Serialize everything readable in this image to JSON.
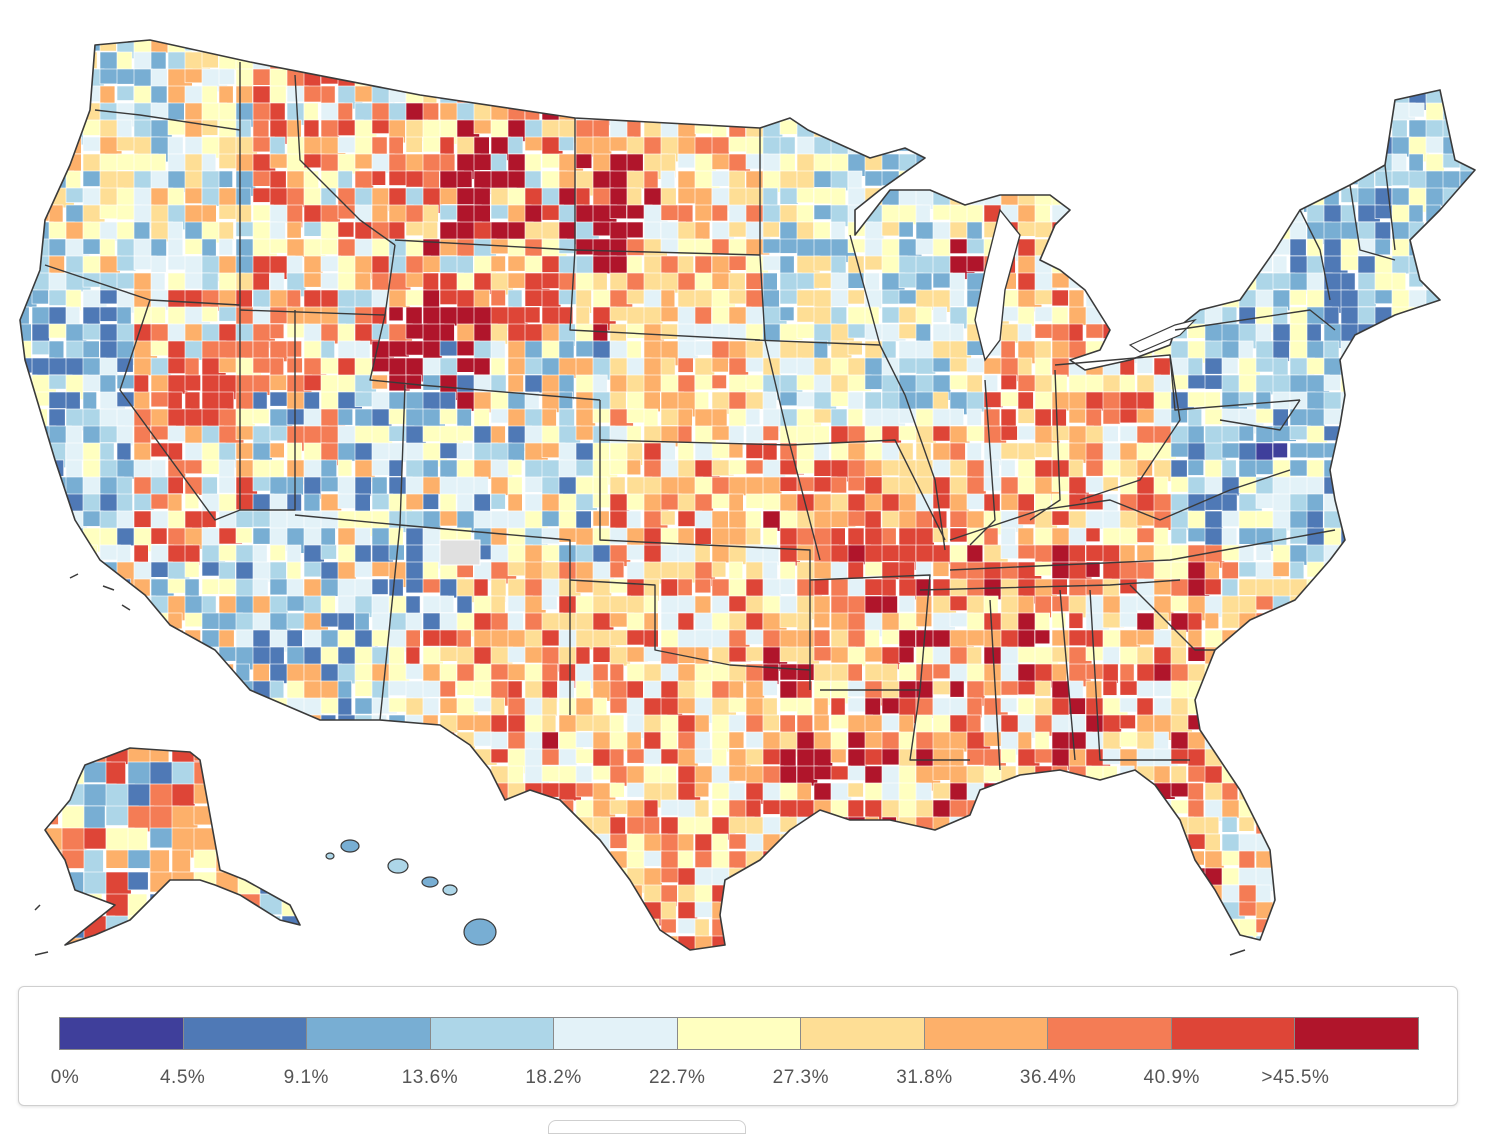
{
  "legend": {
    "colors": [
      "#3f3f9b",
      "#4f79b6",
      "#78aed3",
      "#add6e8",
      "#e3f2f8",
      "#ffffc0",
      "#fede95",
      "#fdb06a",
      "#f47c55",
      "#de4537",
      "#b0152b"
    ],
    "labels": [
      "0%",
      "4.5%",
      "9.1%",
      "13.6%",
      "18.2%",
      "22.7%",
      "27.3%",
      "31.8%",
      "36.4%",
      "40.9%",
      ">45.5%"
    ]
  },
  "map": {
    "nodata_color": "#e0e0e0",
    "regional_palette": [
      {
        "region": "pacific-northwest",
        "colors": [
          "#add6e8",
          "#e3f2f8",
          "#ffffc0",
          "#78aed3",
          "#fede95",
          "#fdb06a"
        ]
      },
      {
        "region": "california-coast",
        "colors": [
          "#78aed3",
          "#add6e8",
          "#4f79b6",
          "#e3f2f8",
          "#ffffc0"
        ]
      },
      {
        "region": "great-basin",
        "colors": [
          "#fdb06a",
          "#f47c55",
          "#ffffc0",
          "#e3f2f8",
          "#de4537",
          "#add6e8"
        ]
      },
      {
        "region": "southwest",
        "colors": [
          "#add6e8",
          "#78aed3",
          "#4f79b6",
          "#e3f2f8",
          "#fdb06a",
          "#ffffc0"
        ]
      },
      {
        "region": "northern-rockies",
        "colors": [
          "#fdb06a",
          "#f47c55",
          "#de4537",
          "#b0152b",
          "#ffffc0",
          "#fede95",
          "#add6e8"
        ]
      },
      {
        "region": "northern-plains",
        "colors": [
          "#fede95",
          "#ffffc0",
          "#fdb06a",
          "#e3f2f8",
          "#f47c55"
        ]
      },
      {
        "region": "southern-plains",
        "colors": [
          "#fede95",
          "#fdb06a",
          "#f47c55",
          "#de4537",
          "#ffffc0",
          "#e3f2f8"
        ]
      },
      {
        "region": "upper-midwest",
        "colors": [
          "#e3f2f8",
          "#add6e8",
          "#78aed3",
          "#ffffc0",
          "#fede95"
        ]
      },
      {
        "region": "midwest",
        "colors": [
          "#fede95",
          "#fdb06a",
          "#ffffc0",
          "#e3f2f8",
          "#f47c55",
          "#de4537"
        ]
      },
      {
        "region": "south",
        "colors": [
          "#fdb06a",
          "#fede95",
          "#f47c55",
          "#de4537",
          "#ffffc0",
          "#e3f2f8",
          "#b0152b"
        ]
      },
      {
        "region": "southeast",
        "colors": [
          "#ffffc0",
          "#fede95",
          "#e3f2f8",
          "#fdb06a",
          "#f47c55",
          "#add6e8"
        ]
      },
      {
        "region": "northeast",
        "colors": [
          "#add6e8",
          "#78aed3",
          "#4f79b6",
          "#e3f2f8",
          "#ffffc0"
        ]
      },
      {
        "region": "alaska",
        "colors": [
          "#78aed3",
          "#add6e8",
          "#fdb06a",
          "#f47c55",
          "#de4537",
          "#ffffc0",
          "#4f79b6"
        ]
      },
      {
        "region": "hawaii",
        "colors": [
          "#78aed3",
          "#add6e8"
        ]
      }
    ]
  }
}
